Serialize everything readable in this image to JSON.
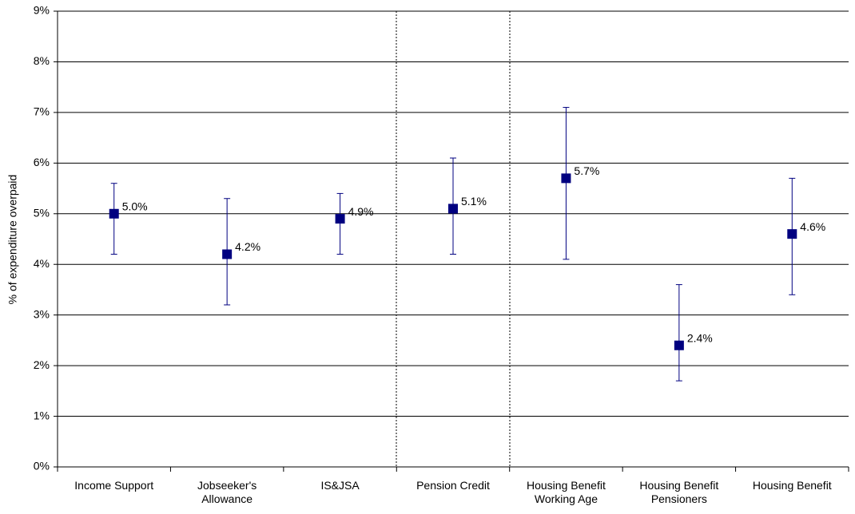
{
  "chart_data": {
    "type": "errorbar",
    "y_label": "% of expenditure overpaid",
    "categories": [
      "Income Support",
      "Jobseeker's Allowance",
      "IS&JSA",
      "Pension Credit",
      "Housing Benefit Working Age",
      "Housing Benefit Pensioners",
      "Housing Benefit"
    ],
    "series": [
      {
        "color": "#000080",
        "values": [
          5.0,
          4.2,
          4.9,
          5.1,
          5.7,
          2.4,
          4.6
        ],
        "value_labels": [
          "5.0%",
          "4.2%",
          "4.9%",
          "5.1%",
          "5.7%",
          "2.4%",
          "4.6%"
        ],
        "lower": [
          4.2,
          3.2,
          4.2,
          4.2,
          4.1,
          1.7,
          3.4
        ],
        "upper": [
          5.6,
          5.3,
          5.4,
          6.1,
          7.1,
          3.6,
          5.7
        ]
      }
    ],
    "ylim": [
      0,
      9
    ],
    "yticks": [
      {
        "value": 0,
        "label": "0%"
      },
      {
        "value": 1,
        "label": "1%"
      },
      {
        "value": 2,
        "label": "2%"
      },
      {
        "value": 3,
        "label": "3%"
      },
      {
        "value": 4,
        "label": "4%"
      },
      {
        "value": 5,
        "label": "5%"
      },
      {
        "value": 6,
        "label": "6%"
      },
      {
        "value": 7,
        "label": "7%"
      },
      {
        "value": 8,
        "label": "8%"
      },
      {
        "value": 9,
        "label": "9%"
      }
    ],
    "grid": true
  }
}
